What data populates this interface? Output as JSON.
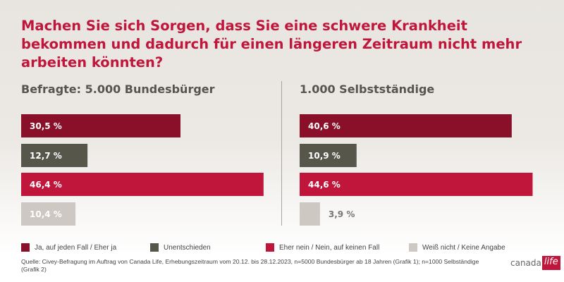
{
  "chart_data": [
    {
      "type": "bar",
      "orientation": "horizontal",
      "title": "Befragte: 5.000 Bundesbürger",
      "categories": [
        "Ja, auf jeden Fall / Eher ja",
        "Unentschieden",
        "Eher nein / Nein, auf keinen Fall",
        "Weiß nicht / Keine Angabe"
      ],
      "values": [
        30.5,
        12.7,
        46.4,
        10.4
      ],
      "labels": [
        "30,5 %",
        "12,7 %",
        "46,4 %",
        "10,4 %"
      ],
      "grid": false
    },
    {
      "type": "bar",
      "orientation": "horizontal",
      "title": "1.000 Selbstständige",
      "categories": [
        "Ja, auf jeden Fall / Eher ja",
        "Unentschieden",
        "Eher nein / Nein, auf keinen Fall",
        "Weiß nicht / Keine Angabe"
      ],
      "values": [
        40.6,
        10.9,
        44.6,
        3.9
      ],
      "labels": [
        "40,6 %",
        "10,9 %",
        "44,6 %",
        "3,9 %"
      ],
      "grid": false
    }
  ],
  "title": "Machen Sie sich Sorgen, dass Sie eine schwere Krankheit bekommen und dadurch für einen längeren Zeitraum nicht mehr arbeiten könnten?",
  "colors": [
    "#8a0f28",
    "#57564b",
    "#c0163b",
    "#cdc8c1"
  ],
  "legend": [
    "Ja, auf jeden Fall / Eher ja",
    "Unentschieden",
    "Eher nein / Nein, auf keinen Fall",
    "Weiß nicht / Keine Angabe"
  ],
  "source": "Quelle: Civey-Befragung im Auftrag von Canada Life, Erhebungszeitraum vom 20.12. bis 28.12.2023, n=5000 Bundesbürger ab 18 Jahren (Grafik 1); n=1000 Selbständige (Grafik 2)",
  "logo": {
    "part1": "canada",
    "part2": "life"
  }
}
